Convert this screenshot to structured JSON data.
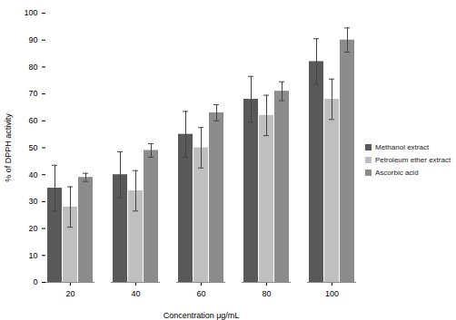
{
  "chart_data": {
    "type": "bar",
    "x_label": "Concentration μg/mL",
    "y_label": "% of DPPH activity",
    "categories": [
      20,
      40,
      60,
      80,
      100
    ],
    "series": [
      {
        "name": "Methanol extract",
        "color": "#595959",
        "values": [
          35,
          40,
          55,
          68,
          82
        ],
        "errors": [
          8.5,
          8.5,
          8.5,
          8.5,
          8.5
        ]
      },
      {
        "name": "Petroleum ether extract",
        "color": "#bfbfbf",
        "values": [
          28,
          34,
          50,
          62,
          68
        ],
        "errors": [
          7.5,
          7.5,
          7.5,
          7.5,
          7.5
        ]
      },
      {
        "name": "Ascorbic acid",
        "color": "#8c8c8c",
        "values": [
          39,
          49,
          63,
          71,
          90
        ],
        "errors": [
          1.5,
          2.5,
          3,
          3.5,
          4.5
        ]
      }
    ],
    "ylim": [
      0,
      100
    ],
    "yticks": [
      0,
      10,
      20,
      30,
      40,
      50,
      60,
      70,
      80,
      90,
      100
    ],
    "grid": false,
    "legend": "right"
  }
}
